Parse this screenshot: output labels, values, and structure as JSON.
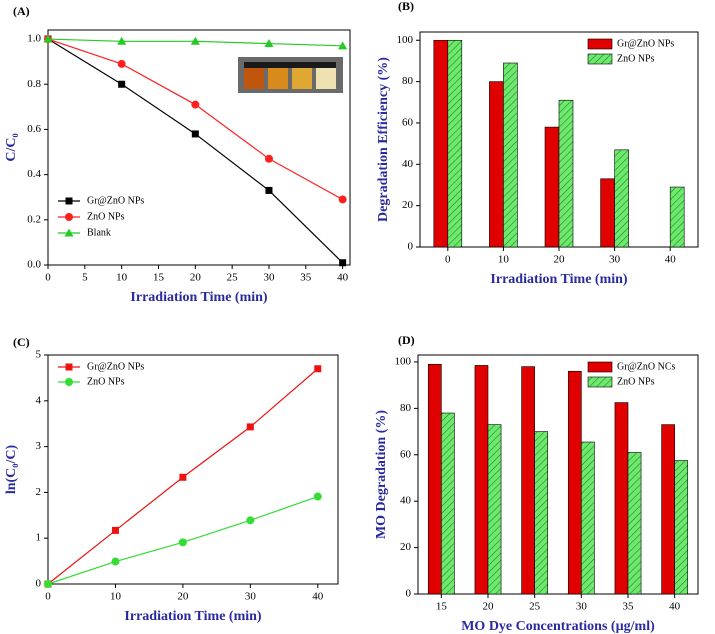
{
  "chart_data": [
    {
      "type": "line",
      "title": "(A)",
      "xlabel": "Irradiation Time (min)",
      "ylabel": "C/C₀",
      "x": [
        0,
        10,
        20,
        30,
        40
      ],
      "xlim": [
        0,
        41
      ],
      "xticks": [
        0,
        5,
        10,
        15,
        20,
        25,
        30,
        35,
        40
      ],
      "ylim": [
        0,
        1.04
      ],
      "yticks": [
        {
          "value": 0,
          "label": "0.0"
        },
        0.2,
        0.4,
        0.6,
        0.8,
        {
          "value": 1,
          "label": "1.0"
        }
      ],
      "legend": "lower left",
      "series": [
        {
          "name": "Gr@ZnO NPs",
          "color": "#000000",
          "marker": "square",
          "values": [
            1.0,
            0.8,
            0.58,
            0.33,
            0.01
          ]
        },
        {
          "name": "ZnO NPs",
          "color": "#ff2020",
          "marker": "circle",
          "values": [
            1.0,
            0.89,
            0.71,
            0.47,
            0.29
          ]
        },
        {
          "name": "Blank",
          "color": "#22cc22",
          "marker": "triangle",
          "values": [
            1.0,
            0.99,
            0.99,
            0.98,
            0.97
          ]
        }
      ]
    },
    {
      "type": "bar",
      "title": "(B)",
      "xlabel": "Irradiation Time (min)",
      "ylabel": "Degradation Efficiency (%)",
      "categories": [
        0,
        10,
        20,
        30,
        40
      ],
      "ylim": [
        0,
        104
      ],
      "yticks": [
        0,
        20,
        40,
        60,
        80,
        100
      ],
      "legend": "upper right",
      "series": [
        {
          "name": "Gr@ZnO NPs",
          "color": "#e00000",
          "values": [
            100,
            80,
            58,
            33,
            null
          ]
        },
        {
          "name": "ZnO NPs",
          "color": "#55dd55",
          "hatch": true,
          "values": [
            100,
            89,
            71,
            47,
            29
          ]
        }
      ]
    },
    {
      "type": "line",
      "title": "(C)",
      "xlabel": "Irradiation Time (min)",
      "ylabel": "ln(C₀/C)",
      "x": [
        0,
        10,
        20,
        30,
        40
      ],
      "xlim": [
        0,
        43
      ],
      "xticks": [
        0,
        10,
        20,
        30,
        40
      ],
      "ylim": [
        0,
        5
      ],
      "yticks": [
        0,
        1,
        2,
        3,
        4,
        5
      ],
      "legend": "upper left",
      "series": [
        {
          "name": "Gr@ZnO NPs",
          "color": "#ee1111",
          "marker": "square",
          "values": [
            0,
            1.17,
            2.33,
            3.43,
            4.7
          ]
        },
        {
          "name": "ZnO NPs",
          "color": "#33dd33",
          "marker": "circle",
          "values": [
            0,
            0.49,
            0.91,
            1.39,
            1.91
          ]
        }
      ]
    },
    {
      "type": "bar",
      "title": "(D)",
      "xlabel": "MO Dye Concentrations (µg/ml)",
      "ylabel": "MO Degradation (%)",
      "categories": [
        15,
        20,
        25,
        30,
        35,
        40
      ],
      "ylim": [
        0,
        103
      ],
      "yticks": [
        0,
        20,
        40,
        60,
        80,
        100
      ],
      "legend": "upper right",
      "series": [
        {
          "name": "Gr@ZnO NCs",
          "color": "#e00000",
          "values": [
            99,
            98.5,
            98,
            96,
            82.5,
            73
          ]
        },
        {
          "name": "ZnO NPs",
          "color": "#55dd55",
          "hatch": true,
          "values": [
            78,
            73,
            70,
            65.5,
            61,
            57.5
          ]
        }
      ]
    }
  ]
}
